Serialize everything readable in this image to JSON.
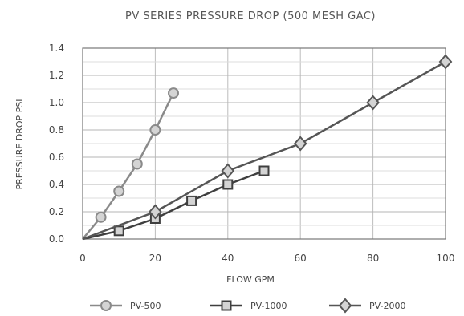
{
  "chart_data": {
    "type": "line",
    "title": "PV SERIES PRESSURE DROP (500 MESH GAC)",
    "xlabel": "FLOW GPM",
    "ylabel": "PRESSURE DROP PSI",
    "xlim": [
      0,
      100
    ],
    "ylim": [
      0,
      1.4
    ],
    "x_ticks": [
      "0",
      "20",
      "40",
      "60",
      "80",
      "100"
    ],
    "y_ticks": [
      "0.0",
      "0.2",
      "0.4",
      "0.6",
      "0.8",
      "1.0",
      "1.2",
      "1.4"
    ],
    "grid": true,
    "legend_position": "bottom",
    "series": [
      {
        "name": "PV-500",
        "color": "#8a8a8a",
        "marker": "circle",
        "x": [
          0,
          5,
          10,
          15,
          20,
          25
        ],
        "y": [
          0,
          0.16,
          0.35,
          0.55,
          0.8,
          1.07
        ]
      },
      {
        "name": "PV-1000",
        "color": "#3f3f3f",
        "marker": "square",
        "x": [
          0,
          10,
          20,
          30,
          40,
          50
        ],
        "y": [
          0,
          0.06,
          0.15,
          0.28,
          0.4,
          0.5
        ]
      },
      {
        "name": "PV-2000",
        "color": "#555555",
        "marker": "diamond",
        "x": [
          0,
          20,
          40,
          60,
          80,
          100
        ],
        "y": [
          0,
          0.2,
          0.5,
          0.7,
          1.0,
          1.3
        ]
      }
    ]
  }
}
